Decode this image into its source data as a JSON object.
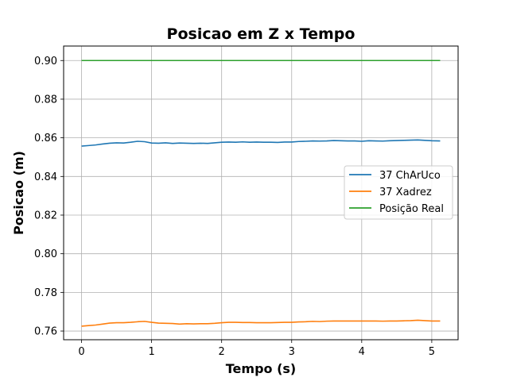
{
  "chart_data": {
    "type": "line",
    "title": "Posicao em Z x Tempo",
    "xlabel": "Tempo (s)",
    "ylabel": "Posicao (m)",
    "xlim": [
      -0.256,
      5.376
    ],
    "ylim": [
      0.7555,
      0.9075
    ],
    "xticks": [
      0,
      1,
      2,
      3,
      4,
      5
    ],
    "xtick_labels": [
      "0",
      "1",
      "2",
      "3",
      "4",
      "5"
    ],
    "yticks": [
      0.76,
      0.78,
      0.8,
      0.82,
      0.84,
      0.86,
      0.88,
      0.9
    ],
    "ytick_labels": [
      "0.76",
      "0.78",
      "0.80",
      "0.82",
      "0.84",
      "0.86",
      "0.88",
      "0.90"
    ],
    "grid": true,
    "legend_position": "center-right",
    "series": [
      {
        "name": "37 ChArUco",
        "color": "#1f77b4",
        "x": [
          0,
          0.1,
          0.2,
          0.3,
          0.4,
          0.5,
          0.6,
          0.7,
          0.8,
          0.9,
          1.0,
          1.1,
          1.2,
          1.3,
          1.4,
          1.5,
          1.6,
          1.7,
          1.8,
          1.9,
          2.0,
          2.1,
          2.2,
          2.3,
          2.4,
          2.5,
          2.6,
          2.7,
          2.8,
          2.9,
          3.0,
          3.1,
          3.2,
          3.3,
          3.4,
          3.5,
          3.6,
          3.7,
          3.8,
          3.9,
          4.0,
          4.1,
          4.2,
          4.3,
          4.4,
          4.5,
          4.6,
          4.7,
          4.8,
          4.9,
          5.0,
          5.12
        ],
        "y": [
          0.8557,
          0.856,
          0.8563,
          0.8568,
          0.8572,
          0.8574,
          0.8573,
          0.8577,
          0.8582,
          0.858,
          0.8573,
          0.8572,
          0.8574,
          0.8571,
          0.8573,
          0.8572,
          0.8571,
          0.8572,
          0.8571,
          0.8574,
          0.8577,
          0.8578,
          0.8577,
          0.8579,
          0.8577,
          0.8578,
          0.8577,
          0.8577,
          0.8576,
          0.8578,
          0.8578,
          0.8581,
          0.8582,
          0.8584,
          0.8583,
          0.8584,
          0.8586,
          0.8585,
          0.8584,
          0.8584,
          0.8582,
          0.8585,
          0.8584,
          0.8583,
          0.8585,
          0.8586,
          0.8587,
          0.8588,
          0.8589,
          0.8587,
          0.8585,
          0.8584
        ]
      },
      {
        "name": "37 Xadrez",
        "color": "#ff7f0e",
        "x": [
          0,
          0.1,
          0.2,
          0.3,
          0.4,
          0.5,
          0.6,
          0.7,
          0.8,
          0.9,
          1.0,
          1.1,
          1.2,
          1.3,
          1.4,
          1.5,
          1.6,
          1.7,
          1.8,
          1.9,
          2.0,
          2.1,
          2.2,
          2.3,
          2.4,
          2.5,
          2.6,
          2.7,
          2.8,
          2.9,
          3.0,
          3.1,
          3.2,
          3.3,
          3.4,
          3.5,
          3.6,
          3.7,
          3.8,
          3.9,
          4.0,
          4.1,
          4.2,
          4.3,
          4.4,
          4.5,
          4.6,
          4.7,
          4.8,
          4.9,
          5.0,
          5.12
        ],
        "y": [
          0.7625,
          0.7628,
          0.7631,
          0.7636,
          0.7641,
          0.7643,
          0.7643,
          0.7645,
          0.7648,
          0.765,
          0.7645,
          0.7641,
          0.764,
          0.7639,
          0.7636,
          0.7638,
          0.7637,
          0.7638,
          0.7638,
          0.764,
          0.7643,
          0.7645,
          0.7645,
          0.7644,
          0.7644,
          0.7643,
          0.7643,
          0.7643,
          0.7644,
          0.7645,
          0.7645,
          0.7647,
          0.7648,
          0.765,
          0.7649,
          0.7651,
          0.7652,
          0.7652,
          0.7652,
          0.7652,
          0.7652,
          0.7652,
          0.7652,
          0.7651,
          0.7652,
          0.7652,
          0.7653,
          0.7654,
          0.7656,
          0.7654,
          0.7652,
          0.7652
        ]
      },
      {
        "name": "Posição Real",
        "color": "#2ca02c",
        "x": [
          0,
          5.12
        ],
        "y": [
          0.9,
          0.9
        ]
      }
    ]
  }
}
